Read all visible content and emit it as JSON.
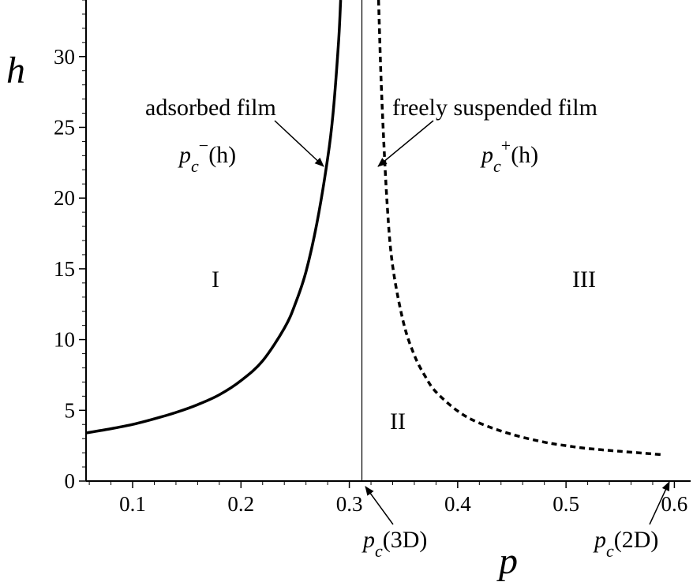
{
  "chart_data": {
    "type": "line",
    "xlabel": "p",
    "ylabel": "h",
    "xlim": [
      0.057,
      0.615
    ],
    "ylim": [
      0,
      34
    ],
    "x_ticks": [
      0.1,
      0.2,
      0.3,
      0.4,
      0.5,
      0.6
    ],
    "x_tick_labels": [
      "0.1",
      "0.2",
      "0.3",
      "0.4",
      "0.5",
      "0.6"
    ],
    "y_ticks": [
      0,
      5,
      10,
      15,
      20,
      25,
      30
    ],
    "y_tick_labels": [
      "0",
      "5",
      "10",
      "15",
      "20",
      "25",
      "30"
    ],
    "grid": false,
    "series": [
      {
        "style": "solid",
        "x": [
          0.057,
          0.08,
          0.1,
          0.12,
          0.14,
          0.16,
          0.18,
          0.2,
          0.22,
          0.24,
          0.25,
          0.26,
          0.27,
          0.28,
          0.285,
          0.29,
          0.292
        ],
        "y": [
          3.4,
          3.7,
          4.0,
          4.4,
          4.85,
          5.4,
          6.1,
          7.1,
          8.5,
          10.8,
          12.5,
          14.8,
          18.2,
          22.8,
          26.0,
          31.0,
          34.0
        ]
      },
      {
        "style": "dashed",
        "x": [
          0.327,
          0.33,
          0.335,
          0.34,
          0.35,
          0.36,
          0.37,
          0.38,
          0.4,
          0.42,
          0.45,
          0.48,
          0.5,
          0.52,
          0.55,
          0.58,
          0.59
        ],
        "y": [
          34.0,
          27.0,
          19.5,
          15.2,
          11.2,
          8.9,
          7.4,
          6.3,
          4.95,
          4.1,
          3.3,
          2.75,
          2.5,
          2.3,
          2.1,
          1.92,
          1.85
        ]
      }
    ],
    "vertical_line": {
      "x": 0.3116
    },
    "annotations": {
      "adsorbed": "adsorbed film",
      "suspended": "freely suspended film",
      "pc_minus": {
        "base": "p",
        "sub": "c",
        "sup": "−",
        "arg": "(h)"
      },
      "pc_plus": {
        "base": "p",
        "sub": "c",
        "sup": "+",
        "arg": "(h)"
      },
      "pc_3d": {
        "base": "p",
        "sub": "c",
        "arg": "(3D)"
      },
      "pc_2d": {
        "base": "p",
        "sub": "c",
        "arg": "(2D)"
      },
      "regions": [
        "I",
        "II",
        "III"
      ]
    }
  }
}
